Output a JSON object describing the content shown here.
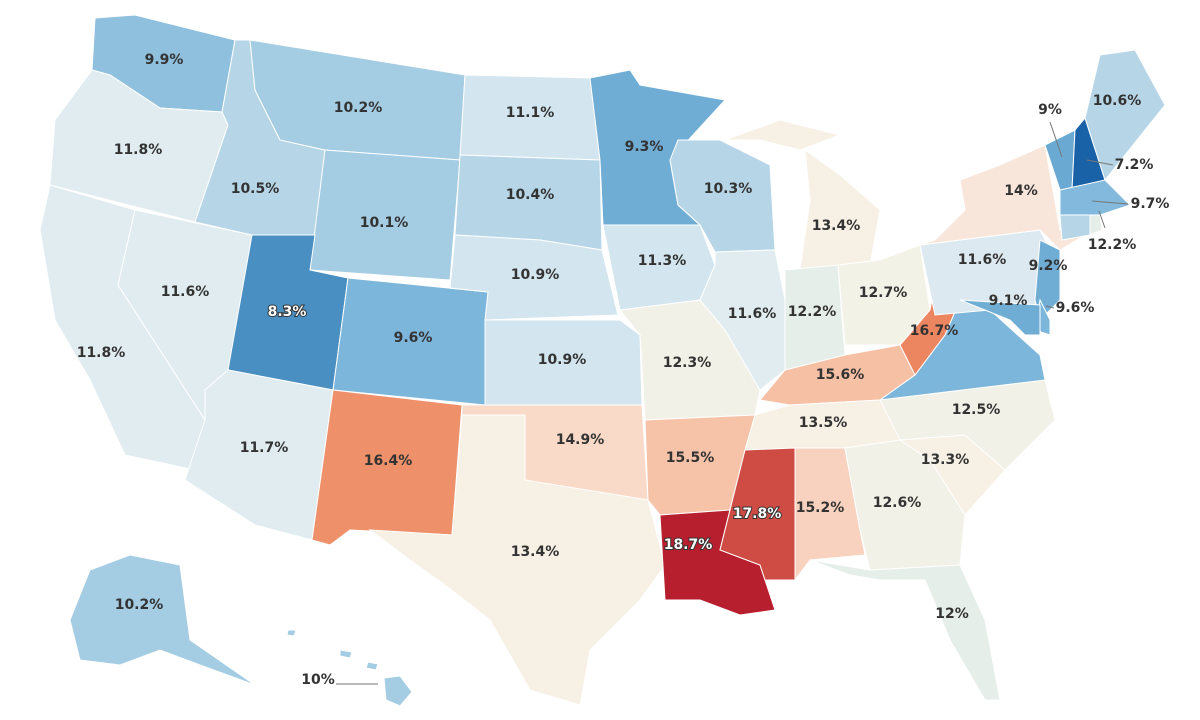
{
  "states": [
    {
      "id": "WA",
      "value": "9.9%",
      "color": "#8fc0de"
    },
    {
      "id": "OR",
      "value": "11.8%",
      "color": "#e0ecf0"
    },
    {
      "id": "CA",
      "value": "11.8%",
      "color": "#e0ecf0"
    },
    {
      "id": "NV",
      "value": "11.6%",
      "color": "#e0ecf0"
    },
    {
      "id": "ID",
      "value": "10.5%",
      "color": "#b6d6e8"
    },
    {
      "id": "MT",
      "value": "10.2%",
      "color": "#a4cce3"
    },
    {
      "id": "WY",
      "value": "10.1%",
      "color": "#a4cce3"
    },
    {
      "id": "UT",
      "value": "8.3%",
      "color": "#4a8fc2"
    },
    {
      "id": "CO",
      "value": "9.6%",
      "color": "#7db6db"
    },
    {
      "id": "AZ",
      "value": "11.7%",
      "color": "#e0ecf0"
    },
    {
      "id": "NM",
      "value": "16.4%",
      "color": "#ee916a"
    },
    {
      "id": "ND",
      "value": "11.1%",
      "color": "#d3e5ef"
    },
    {
      "id": "SD",
      "value": "10.4%",
      "color": "#b6d6e8"
    },
    {
      "id": "NE",
      "value": "10.9%",
      "color": "#d3e5ef"
    },
    {
      "id": "KS",
      "value": "10.9%",
      "color": "#d3e5ef"
    },
    {
      "id": "OK",
      "value": "14.9%",
      "color": "#f9dac8"
    },
    {
      "id": "TX",
      "value": "13.4%",
      "color": "#f7f0e4"
    },
    {
      "id": "MN",
      "value": "9.3%",
      "color": "#6fadd4"
    },
    {
      "id": "IA",
      "value": "11.3%",
      "color": "#d3e5ef"
    },
    {
      "id": "MO",
      "value": "12.3%",
      "color": "#f1f1e7"
    },
    {
      "id": "AR",
      "value": "15.5%",
      "color": "#f6c3a9"
    },
    {
      "id": "LA",
      "value": "18.7%",
      "color": "#b71f2e"
    },
    {
      "id": "WI",
      "value": "10.3%",
      "color": "#b6d6e8"
    },
    {
      "id": "IL",
      "value": "11.6%",
      "color": "#e0ecf0"
    },
    {
      "id": "MI",
      "value": "13.4%",
      "color": "#f7f0e4"
    },
    {
      "id": "IN",
      "value": "12.2%",
      "color": "#e6eeea"
    },
    {
      "id": "OH",
      "value": "12.7%",
      "color": "#f3f2e6"
    },
    {
      "id": "KY",
      "value": "15.6%",
      "color": "#f6c0a5"
    },
    {
      "id": "TN",
      "value": "13.5%",
      "color": "#f7f0e4"
    },
    {
      "id": "MS",
      "value": "17.8%",
      "color": "#cf4c44"
    },
    {
      "id": "AL",
      "value": "15.2%",
      "color": "#f8d2bf"
    },
    {
      "id": "GA",
      "value": "12.6%",
      "color": "#f1f1e7"
    },
    {
      "id": "FL",
      "value": "12%",
      "color": "#e6eeea"
    },
    {
      "id": "SC",
      "value": "13.3%",
      "color": "#f7f0e4"
    },
    {
      "id": "NC",
      "value": "12.5%",
      "color": "#f1f1e7"
    },
    {
      "id": "VA",
      "value": "",
      "color": "#7db6db"
    },
    {
      "id": "WV",
      "value": "16.7%",
      "color": "#ec8660"
    },
    {
      "id": "PA",
      "value": "11.6%",
      "color": "#dde9f0"
    },
    {
      "id": "NY",
      "value": "14%",
      "color": "#f9e6db"
    },
    {
      "id": "NJ",
      "value": "9.2%",
      "color": "#6fadd4"
    },
    {
      "id": "DE",
      "value": "9.6%",
      "color": "#7db6db"
    },
    {
      "id": "MD",
      "value": "9.1%",
      "color": "#6fadd4"
    },
    {
      "id": "VT",
      "value": "9%",
      "color": "#6aaad2"
    },
    {
      "id": "NH",
      "value": "7.2%",
      "color": "#1a62a8"
    },
    {
      "id": "ME",
      "value": "10.6%",
      "color": "#b6d6e8"
    },
    {
      "id": "MA",
      "value": "9.7%",
      "color": "#82b9dc"
    },
    {
      "id": "CT",
      "value": "",
      "color": "#b6d6e8"
    },
    {
      "id": "RI",
      "value": "12.2%",
      "color": "#e6eeea"
    },
    {
      "id": "AK",
      "value": "10.2%",
      "color": "#a4cce3"
    },
    {
      "id": "HI",
      "value": "10%",
      "color": "#a4cce3"
    }
  ]
}
